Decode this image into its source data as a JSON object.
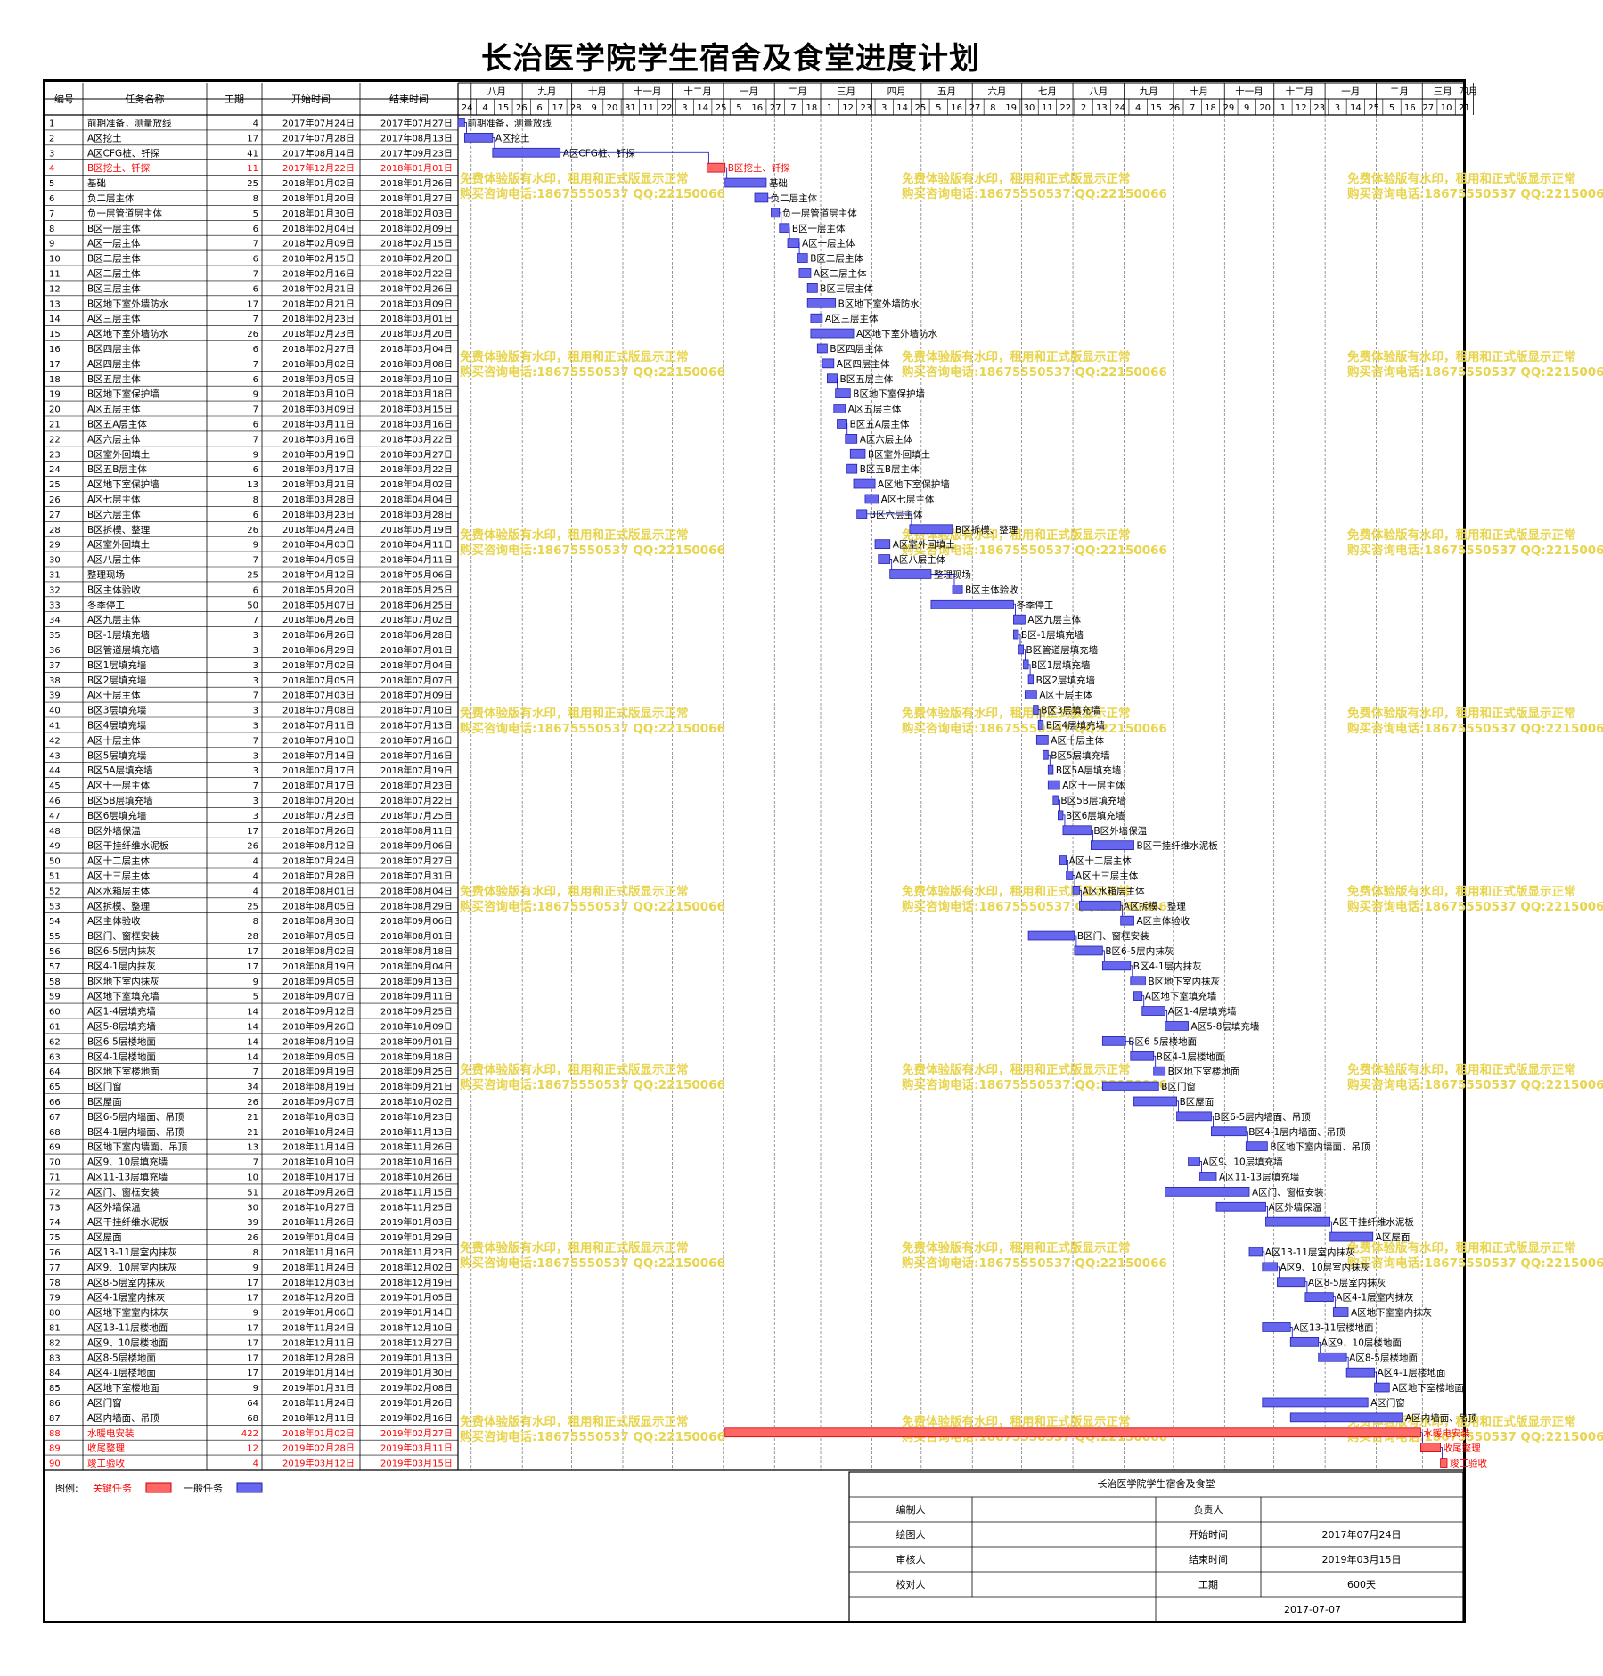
{
  "title": "长治医学院学生宿舍及食堂进度计划",
  "colors": {
    "critical": "#ff6666",
    "normal": "#6666ee",
    "critical_text": "#ff0000",
    "link": "#0000cc",
    "watermark": "#e8d44d"
  },
  "headers": {
    "id": "编号",
    "name": "任务名称",
    "duration": "工期",
    "start": "开始时间",
    "end": "结束时间"
  },
  "months": [
    "八月",
    "九月",
    "十月",
    "十一月",
    "十二月",
    "一月",
    "二月",
    "三月",
    "四月",
    "五月",
    "六月",
    "七月",
    "八月",
    "九月",
    "十月",
    "十一月",
    "十二月",
    "一月",
    "二月",
    "三月",
    "四月"
  ],
  "month_starts": [
    "2017-08-01",
    "2017-09-01",
    "2017-10-01",
    "2017-11-01",
    "2017-12-01",
    "2018-01-01",
    "2018-02-01",
    "2018-03-01",
    "2018-04-01",
    "2018-05-01",
    "2018-06-01",
    "2018-07-01",
    "2018-08-01",
    "2018-09-01",
    "2018-10-01",
    "2018-11-01",
    "2018-12-01",
    "2019-01-01",
    "2019-02-01",
    "2019-03-01",
    "2019-04-01"
  ],
  "week_labels": [
    "24",
    "4",
    "15",
    "26",
    "6",
    "17",
    "28",
    "9",
    "20",
    "31",
    "11",
    "22",
    "3",
    "14",
    "25",
    "5",
    "16",
    "27",
    "7",
    "18",
    "1",
    "12",
    "23",
    "3",
    "14",
    "25",
    "5",
    "16",
    "27",
    "8",
    "19",
    "30",
    "11",
    "22",
    "2",
    "13",
    "24",
    "4",
    "15",
    "26",
    "7",
    "18",
    "29",
    "9",
    "20",
    "1",
    "12",
    "23",
    "3",
    "14",
    "25",
    "5",
    "16",
    "27",
    "10",
    "21",
    "1"
  ],
  "legend": {
    "label": "图例:",
    "critical": "关键任务",
    "normal": "一般任务"
  },
  "watermark": {
    "line1": "免费体验版有水印，租用和正式版显示正常",
    "line2": "购买咨询电话:18675550537 QQ:22150066"
  },
  "info": {
    "project": "长治医学院学生宿舍及食堂",
    "compiler_label": "编制人",
    "drawer_label": "绘图人",
    "reviewer_label": "审核人",
    "checker_label": "校对人",
    "owner_label": "负责人",
    "start_label": "开始时间",
    "end_label": "结束时间",
    "duration_label": "工期",
    "start": "2017年07月24日",
    "end": "2019年03月15日",
    "duration": "600天",
    "date": "2017-07-07"
  },
  "chart_data": {
    "type": "gantt",
    "title": "长治医学院学生宿舍及食堂进度计划",
    "x_range": [
      "2017-07-24",
      "2019-04-05"
    ],
    "tasks": [
      {
        "id": "1",
        "name": "前期准备，测量放线",
        "duration": "4",
        "start": "2017年07月24日",
        "end": "2017年07月27日",
        "critical": false
      },
      {
        "id": "2",
        "name": "A区挖土",
        "duration": "17",
        "start": "2017年07月28日",
        "end": "2017年08月13日",
        "critical": false
      },
      {
        "id": "3",
        "name": "A区CFG桩、钎探",
        "duration": "41",
        "start": "2017年08月14日",
        "end": "2017年09月23日",
        "critical": false
      },
      {
        "id": "4",
        "name": "B区挖土、钎探",
        "duration": "11",
        "start": "2017年12月22日",
        "end": "2018年01月01日",
        "critical": true
      },
      {
        "id": "5",
        "name": "基础",
        "duration": "25",
        "start": "2018年01月02日",
        "end": "2018年01月26日",
        "critical": false
      },
      {
        "id": "6",
        "name": "负二层主体",
        "duration": "8",
        "start": "2018年01月20日",
        "end": "2018年01月27日",
        "critical": false
      },
      {
        "id": "7",
        "name": "负一层管道层主体",
        "duration": "5",
        "start": "2018年01月30日",
        "end": "2018年02月03日",
        "critical": false
      },
      {
        "id": "8",
        "name": "B区一层主体",
        "duration": "6",
        "start": "2018年02月04日",
        "end": "2018年02月09日",
        "critical": false
      },
      {
        "id": "9",
        "name": "A区一层主体",
        "duration": "7",
        "start": "2018年02月09日",
        "end": "2018年02月15日",
        "critical": false
      },
      {
        "id": "10",
        "name": "B区二层主体",
        "duration": "6",
        "start": "2018年02月15日",
        "end": "2018年02月20日",
        "critical": false
      },
      {
        "id": "11",
        "name": "A区二层主体",
        "duration": "7",
        "start": "2018年02月16日",
        "end": "2018年02月22日",
        "critical": false
      },
      {
        "id": "12",
        "name": "B区三层主体",
        "duration": "6",
        "start": "2018年02月21日",
        "end": "2018年02月26日",
        "critical": false
      },
      {
        "id": "13",
        "name": "B区地下室外墙防水",
        "duration": "17",
        "start": "2018年02月21日",
        "end": "2018年03月09日",
        "critical": false
      },
      {
        "id": "14",
        "name": "A区三层主体",
        "duration": "7",
        "start": "2018年02月23日",
        "end": "2018年03月01日",
        "critical": false
      },
      {
        "id": "15",
        "name": "A区地下室外墙防水",
        "duration": "26",
        "start": "2018年02月23日",
        "end": "2018年03月20日",
        "critical": false
      },
      {
        "id": "16",
        "name": "B区四层主体",
        "duration": "6",
        "start": "2018年02月27日",
        "end": "2018年03月04日",
        "critical": false
      },
      {
        "id": "17",
        "name": "A区四层主体",
        "duration": "7",
        "start": "2018年03月02日",
        "end": "2018年03月08日",
        "critical": false
      },
      {
        "id": "18",
        "name": "B区五层主体",
        "duration": "6",
        "start": "2018年03月05日",
        "end": "2018年03月10日",
        "critical": false
      },
      {
        "id": "19",
        "name": "B区地下室保护墙",
        "duration": "9",
        "start": "2018年03月10日",
        "end": "2018年03月18日",
        "critical": false
      },
      {
        "id": "20",
        "name": "A区五层主体",
        "duration": "7",
        "start": "2018年03月09日",
        "end": "2018年03月15日",
        "critical": false
      },
      {
        "id": "21",
        "name": "B区五A层主体",
        "duration": "6",
        "start": "2018年03月11日",
        "end": "2018年03月16日",
        "critical": false
      },
      {
        "id": "22",
        "name": "A区六层主体",
        "duration": "7",
        "start": "2018年03月16日",
        "end": "2018年03月22日",
        "critical": false
      },
      {
        "id": "23",
        "name": "B区室外回填土",
        "duration": "9",
        "start": "2018年03月19日",
        "end": "2018年03月27日",
        "critical": false
      },
      {
        "id": "24",
        "name": "B区五B层主体",
        "duration": "6",
        "start": "2018年03月17日",
        "end": "2018年03月22日",
        "critical": false
      },
      {
        "id": "25",
        "name": "A区地下室保护墙",
        "duration": "13",
        "start": "2018年03月21日",
        "end": "2018年04月02日",
        "critical": false
      },
      {
        "id": "26",
        "name": "A区七层主体",
        "duration": "8",
        "start": "2018年03月28日",
        "end": "2018年04月04日",
        "critical": false
      },
      {
        "id": "27",
        "name": "B区六层主体",
        "duration": "6",
        "start": "2018年03月23日",
        "end": "2018年03月28日",
        "critical": false
      },
      {
        "id": "28",
        "name": "B区拆模、整理",
        "duration": "26",
        "start": "2018年04月24日",
        "end": "2018年05月19日",
        "critical": false
      },
      {
        "id": "29",
        "name": "A区室外回填土",
        "duration": "9",
        "start": "2018年04月03日",
        "end": "2018年04月11日",
        "critical": false
      },
      {
        "id": "30",
        "name": "A区八层主体",
        "duration": "7",
        "start": "2018年04月05日",
        "end": "2018年04月11日",
        "critical": false
      },
      {
        "id": "31",
        "name": "整理现场",
        "duration": "25",
        "start": "2018年04月12日",
        "end": "2018年05月06日",
        "critical": false
      },
      {
        "id": "32",
        "name": "B区主体验收",
        "duration": "6",
        "start": "2018年05月20日",
        "end": "2018年05月25日",
        "critical": false
      },
      {
        "id": "33",
        "name": "冬季停工",
        "duration": "50",
        "start": "2018年05月07日",
        "end": "2018年06月25日",
        "critical": false
      },
      {
        "id": "34",
        "name": "A区九层主体",
        "duration": "7",
        "start": "2018年06月26日",
        "end": "2018年07月02日",
        "critical": false
      },
      {
        "id": "35",
        "name": "B区-1层填充墙",
        "duration": "3",
        "start": "2018年06月26日",
        "end": "2018年06月28日",
        "critical": false
      },
      {
        "id": "36",
        "name": "B区管道层填充墙",
        "duration": "3",
        "start": "2018年06月29日",
        "end": "2018年07月01日",
        "critical": false
      },
      {
        "id": "37",
        "name": "B区1层填充墙",
        "duration": "3",
        "start": "2018年07月02日",
        "end": "2018年07月04日",
        "critical": false
      },
      {
        "id": "38",
        "name": "B区2层填充墙",
        "duration": "3",
        "start": "2018年07月05日",
        "end": "2018年07月07日",
        "critical": false
      },
      {
        "id": "39",
        "name": "A区十层主体",
        "duration": "7",
        "start": "2018年07月03日",
        "end": "2018年07月09日",
        "critical": false
      },
      {
        "id": "40",
        "name": "B区3层填充墙",
        "duration": "3",
        "start": "2018年07月08日",
        "end": "2018年07月10日",
        "critical": false
      },
      {
        "id": "41",
        "name": "B区4层填充墙",
        "duration": "3",
        "start": "2018年07月11日",
        "end": "2018年07月13日",
        "critical": false
      },
      {
        "id": "42",
        "name": "A区十层主体",
        "duration": "7",
        "start": "2018年07月10日",
        "end": "2018年07月16日",
        "critical": false
      },
      {
        "id": "43",
        "name": "B区5层填充墙",
        "duration": "3",
        "start": "2018年07月14日",
        "end": "2018年07月16日",
        "critical": false
      },
      {
        "id": "44",
        "name": "B区5A层填充墙",
        "duration": "3",
        "start": "2018年07月17日",
        "end": "2018年07月19日",
        "critical": false
      },
      {
        "id": "45",
        "name": "A区十一层主体",
        "duration": "7",
        "start": "2018年07月17日",
        "end": "2018年07月23日",
        "critical": false
      },
      {
        "id": "46",
        "name": "B区5B层填充墙",
        "duration": "3",
        "start": "2018年07月20日",
        "end": "2018年07月22日",
        "critical": false
      },
      {
        "id": "47",
        "name": "B区6层填充墙",
        "duration": "3",
        "start": "2018年07月23日",
        "end": "2018年07月25日",
        "critical": false
      },
      {
        "id": "48",
        "name": "B区外墙保温",
        "duration": "17",
        "start": "2018年07月26日",
        "end": "2018年08月11日",
        "critical": false
      },
      {
        "id": "49",
        "name": "B区干挂纤维水泥板",
        "duration": "26",
        "start": "2018年08月12日",
        "end": "2018年09月06日",
        "critical": false
      },
      {
        "id": "50",
        "name": "A区十二层主体",
        "duration": "4",
        "start": "2018年07月24日",
        "end": "2018年07月27日",
        "critical": false
      },
      {
        "id": "51",
        "name": "A区十三层主体",
        "duration": "4",
        "start": "2018年07月28日",
        "end": "2018年07月31日",
        "critical": false
      },
      {
        "id": "52",
        "name": "A区水箱层主体",
        "duration": "4",
        "start": "2018年08月01日",
        "end": "2018年08月04日",
        "critical": false
      },
      {
        "id": "53",
        "name": "A区拆模、整理",
        "duration": "25",
        "start": "2018年08月05日",
        "end": "2018年08月29日",
        "critical": false
      },
      {
        "id": "54",
        "name": "A区主体验收",
        "duration": "8",
        "start": "2018年08月30日",
        "end": "2018年09月06日",
        "critical": false
      },
      {
        "id": "55",
        "name": "B区门、窗框安装",
        "duration": "28",
        "start": "2018年07月05日",
        "end": "2018年08月01日",
        "critical": false
      },
      {
        "id": "56",
        "name": "B区6-5层内抹灰",
        "duration": "17",
        "start": "2018年08月02日",
        "end": "2018年08月18日",
        "critical": false
      },
      {
        "id": "57",
        "name": "B区4-1层内抹灰",
        "duration": "17",
        "start": "2018年08月19日",
        "end": "2018年09月04日",
        "critical": false
      },
      {
        "id": "58",
        "name": "B区地下室内抹灰",
        "duration": "9",
        "start": "2018年09月05日",
        "end": "2018年09月13日",
        "critical": false
      },
      {
        "id": "59",
        "name": "A区地下室填充墙",
        "duration": "5",
        "start": "2018年09月07日",
        "end": "2018年09月11日",
        "critical": false
      },
      {
        "id": "60",
        "name": "A区1-4层填充墙",
        "duration": "14",
        "start": "2018年09月12日",
        "end": "2018年09月25日",
        "critical": false
      },
      {
        "id": "61",
        "name": "A区5-8层填充墙",
        "duration": "14",
        "start": "2018年09月26日",
        "end": "2018年10月09日",
        "critical": false
      },
      {
        "id": "62",
        "name": "B区6-5层楼地面",
        "duration": "14",
        "start": "2018年08月19日",
        "end": "2018年09月01日",
        "critical": false
      },
      {
        "id": "63",
        "name": "B区4-1层楼地面",
        "duration": "14",
        "start": "2018年09月05日",
        "end": "2018年09月18日",
        "critical": false
      },
      {
        "id": "64",
        "name": "B区地下室楼地面",
        "duration": "7",
        "start": "2018年09月19日",
        "end": "2018年09月25日",
        "critical": false
      },
      {
        "id": "65",
        "name": "B区门窗",
        "duration": "34",
        "start": "2018年08月19日",
        "end": "2018年09月21日",
        "critical": false
      },
      {
        "id": "66",
        "name": "B区屋面",
        "duration": "26",
        "start": "2018年09月07日",
        "end": "2018年10月02日",
        "critical": false
      },
      {
        "id": "67",
        "name": "B区6-5层内墙面、吊顶",
        "duration": "21",
        "start": "2018年10月03日",
        "end": "2018年10月23日",
        "critical": false
      },
      {
        "id": "68",
        "name": "B区4-1层内墙面、吊顶",
        "duration": "21",
        "start": "2018年10月24日",
        "end": "2018年11月13日",
        "critical": false
      },
      {
        "id": "69",
        "name": "B区地下室内墙面、吊顶",
        "duration": "13",
        "start": "2018年11月14日",
        "end": "2018年11月26日",
        "critical": false
      },
      {
        "id": "70",
        "name": "A区9、10层填充墙",
        "duration": "7",
        "start": "2018年10月10日",
        "end": "2018年10月16日",
        "critical": false
      },
      {
        "id": "71",
        "name": "A区11-13层填充墙",
        "duration": "10",
        "start": "2018年10月17日",
        "end": "2018年10月26日",
        "critical": false
      },
      {
        "id": "72",
        "name": "A区门、窗框安装",
        "duration": "51",
        "start": "2018年09月26日",
        "end": "2018年11月15日",
        "critical": false
      },
      {
        "id": "73",
        "name": "A区外墙保温",
        "duration": "30",
        "start": "2018年10月27日",
        "end": "2018年11月25日",
        "critical": false
      },
      {
        "id": "74",
        "name": "A区干挂纤维水泥板",
        "duration": "39",
        "start": "2018年11月26日",
        "end": "2019年01月03日",
        "critical": false
      },
      {
        "id": "75",
        "name": "A区屋面",
        "duration": "26",
        "start": "2019年01月04日",
        "end": "2019年01月29日",
        "critical": false
      },
      {
        "id": "76",
        "name": "A区13-11层室内抹灰",
        "duration": "8",
        "start": "2018年11月16日",
        "end": "2018年11月23日",
        "critical": false
      },
      {
        "id": "77",
        "name": "A区9、10层室内抹灰",
        "duration": "9",
        "start": "2018年11月24日",
        "end": "2018年12月02日",
        "critical": false
      },
      {
        "id": "78",
        "name": "A区8-5层室内抹灰",
        "duration": "17",
        "start": "2018年12月03日",
        "end": "2018年12月19日",
        "critical": false
      },
      {
        "id": "79",
        "name": "A区4-1层室内抹灰",
        "duration": "17",
        "start": "2018年12月20日",
        "end": "2019年01月05日",
        "critical": false
      },
      {
        "id": "80",
        "name": "A区地下室室内抹灰",
        "duration": "9",
        "start": "2019年01月06日",
        "end": "2019年01月14日",
        "critical": false
      },
      {
        "id": "81",
        "name": "A区13-11层楼地面",
        "duration": "17",
        "start": "2018年11月24日",
        "end": "2018年12月10日",
        "critical": false
      },
      {
        "id": "82",
        "name": "A区9、10层楼地面",
        "duration": "17",
        "start": "2018年12月11日",
        "end": "2018年12月27日",
        "critical": false
      },
      {
        "id": "83",
        "name": "A区8-5层楼地面",
        "duration": "17",
        "start": "2018年12月28日",
        "end": "2019年01月13日",
        "critical": false
      },
      {
        "id": "84",
        "name": "A区4-1层楼地面",
        "duration": "17",
        "start": "2019年01月14日",
        "end": "2019年01月30日",
        "critical": false
      },
      {
        "id": "85",
        "name": "A区地下室楼地面",
        "duration": "9",
        "start": "2019年01月31日",
        "end": "2019年02月08日",
        "critical": false
      },
      {
        "id": "86",
        "name": "A区门窗",
        "duration": "64",
        "start": "2018年11月24日",
        "end": "2019年01月26日",
        "critical": false
      },
      {
        "id": "87",
        "name": "A区内墙面、吊顶",
        "duration": "68",
        "start": "2018年12月11日",
        "end": "2019年02月16日",
        "critical": false
      },
      {
        "id": "88",
        "name": "水暖电安装",
        "duration": "422",
        "start": "2018年01月02日",
        "end": "2019年02月27日",
        "critical": true
      },
      {
        "id": "89",
        "name": "收尾整理",
        "duration": "12",
        "start": "2019年02月28日",
        "end": "2019年03月11日",
        "critical": true
      },
      {
        "id": "90",
        "name": "竣工验收",
        "duration": "4",
        "start": "2019年03月12日",
        "end": "2019年03月15日",
        "critical": true
      }
    ]
  }
}
